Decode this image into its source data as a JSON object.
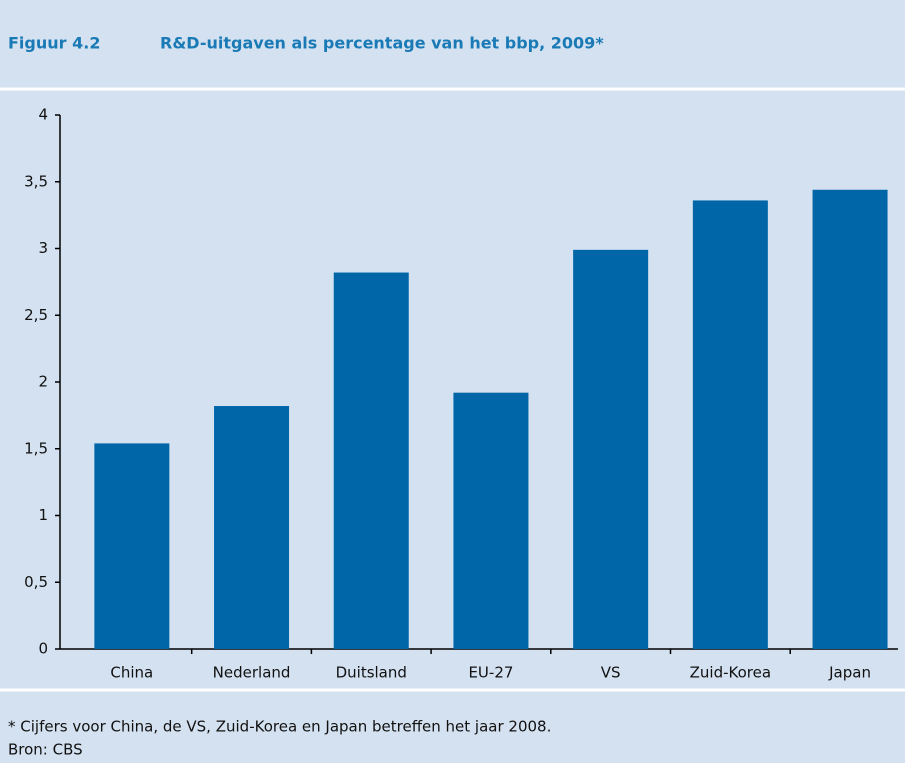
{
  "chart_data": {
    "type": "bar",
    "figure_label": "Figuur 4.2",
    "title": "R&D-uitgaven als percentage van het bbp, 2009*",
    "categories": [
      "China",
      "Nederland",
      "Duitsland",
      "EU-27",
      "VS",
      "Zuid-Korea",
      "Japan"
    ],
    "values": [
      1.54,
      1.82,
      2.82,
      1.92,
      2.99,
      3.36,
      3.44
    ],
    "color": "#0066a8",
    "ylim": [
      0,
      4
    ],
    "yticks": [
      0,
      {
        "value": 0.5,
        "label": "0,5"
      },
      1,
      {
        "value": 1.5,
        "label": "1,5"
      },
      2,
      {
        "value": 2.5,
        "label": "2,5"
      },
      3,
      {
        "value": 3.5,
        "label": "3,5"
      },
      4
    ],
    "grid": false,
    "footnote": "* Cijfers voor China, de VS, Zuid-Korea en Japan betreffen het jaar 2008.",
    "source": "Bron: CBS"
  }
}
